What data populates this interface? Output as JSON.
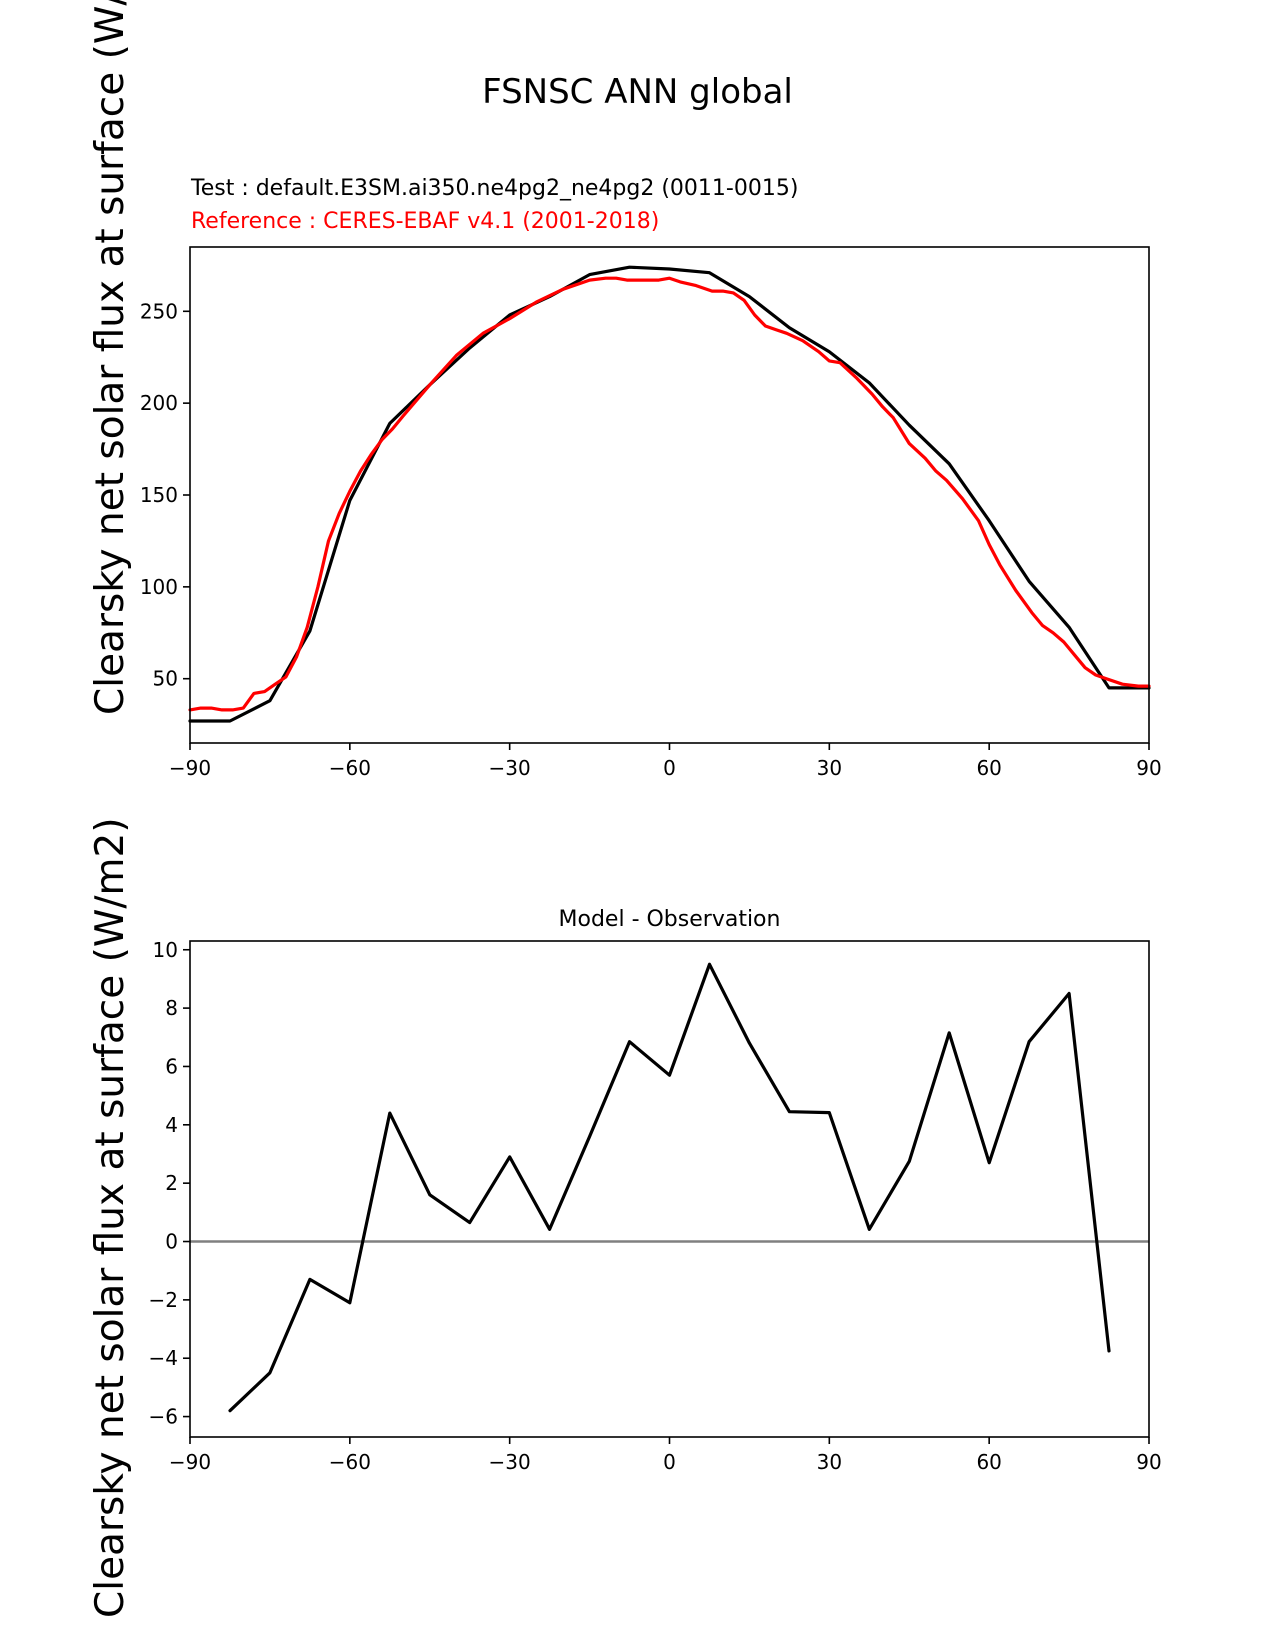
{
  "figure": {
    "suptitle": "FSNSC ANN global",
    "ylabel": "Clearsky net solar flux at surface (W/m2)"
  },
  "colors": {
    "test": "#000000",
    "reference": "#ff0000",
    "zero_line": "#808080"
  },
  "chart_data": [
    {
      "type": "line",
      "test_label": "Test : default.E3SM.ai350.ne4pg2_ne4pg2 (0011-0015)",
      "reference_label": "Reference : CERES-EBAF v4.1 (2001-2018)",
      "xlim": [
        -90,
        90
      ],
      "ylim": [
        15,
        285
      ],
      "xticks": [
        -90,
        -60,
        -30,
        0,
        30,
        60,
        90
      ],
      "yticks": [
        50,
        100,
        150,
        200,
        250
      ],
      "xtick_labels": [
        "−90",
        "−60",
        "−30",
        "0",
        "30",
        "60",
        "90"
      ],
      "ytick_labels": [
        "50",
        "100",
        "150",
        "200",
        "250"
      ],
      "series": [
        {
          "color": "#000000",
          "x": [
            -90,
            -82.5,
            -75,
            -67.5,
            -60,
            -52.5,
            -45,
            -37.5,
            -30,
            -22.5,
            -15,
            -7.5,
            0,
            7.5,
            15,
            22.5,
            30,
            37.5,
            45,
            52.5,
            60,
            67.5,
            75,
            82.5,
            90
          ],
          "y": [
            27,
            27,
            38,
            76,
            147,
            189,
            210,
            230,
            248,
            258,
            270,
            274,
            273,
            271,
            258,
            241,
            228,
            211,
            188,
            167,
            136,
            103,
            78,
            45,
            45
          ]
        },
        {
          "color": "#ff0000",
          "x": [
            -90,
            -88,
            -86,
            -84,
            -82,
            -80,
            -78,
            -76,
            -74,
            -72,
            -70,
            -68,
            -66,
            -64,
            -62,
            -60,
            -58,
            -56,
            -54,
            -52,
            -50,
            -45,
            -40,
            -35,
            -30,
            -25,
            -20,
            -15,
            -12,
            -10,
            -8,
            -5,
            -2,
            0,
            2,
            5,
            8,
            10,
            12,
            14,
            16,
            18,
            20,
            22,
            25,
            28,
            30,
            32,
            35,
            38,
            40,
            42,
            45,
            48,
            50,
            52,
            55,
            58,
            60,
            62,
            65,
            68,
            70,
            72,
            74,
            76,
            78,
            80,
            82,
            85,
            88,
            90
          ],
          "y": [
            33,
            34,
            34,
            33,
            33,
            34,
            42,
            43,
            47,
            51,
            62,
            78,
            100,
            125,
            140,
            152,
            163,
            172,
            180,
            186,
            193,
            210,
            226,
            238,
            246,
            255,
            262,
            267,
            268,
            268,
            267,
            267,
            267,
            268,
            266,
            264,
            261,
            261,
            260,
            256,
            248,
            242,
            240,
            238,
            234,
            228,
            223,
            222,
            214,
            205,
            198,
            192,
            178,
            170,
            163,
            158,
            148,
            136,
            123,
            112,
            98,
            86,
            79,
            75,
            70,
            63,
            56,
            52,
            50,
            47,
            46,
            46
          ]
        }
      ]
    },
    {
      "type": "line",
      "title": "Model - Observation",
      "xlim": [
        -90,
        90
      ],
      "ylim": [
        -6.7,
        10.3
      ],
      "xticks": [
        -90,
        -60,
        -30,
        0,
        30,
        60,
        90
      ],
      "yticks": [
        -6,
        -4,
        -2,
        0,
        2,
        4,
        6,
        8,
        10
      ],
      "xtick_labels": [
        "−90",
        "−60",
        "−30",
        "0",
        "30",
        "60",
        "90"
      ],
      "ytick_labels": [
        "−6",
        "−4",
        "−2",
        "0",
        "2",
        "4",
        "6",
        "8",
        "10"
      ],
      "series": [
        {
          "color": "#000000",
          "x": [
            -82.5,
            -75,
            -67.5,
            -60,
            -52.5,
            -45,
            -37.5,
            -30,
            -22.5,
            -15,
            -7.5,
            0,
            7.5,
            15,
            22.5,
            30,
            37.5,
            45,
            52.5,
            60,
            67.5,
            75,
            82.5
          ],
          "y": [
            -5.8,
            -4.5,
            -1.3,
            -2.1,
            4.4,
            1.6,
            0.65,
            2.9,
            0.42,
            3.6,
            6.85,
            5.7,
            9.5,
            6.8,
            4.45,
            4.42,
            0.42,
            2.75,
            7.15,
            2.7,
            6.85,
            8.5,
            -3.75
          ]
        }
      ],
      "hline": 0
    }
  ]
}
